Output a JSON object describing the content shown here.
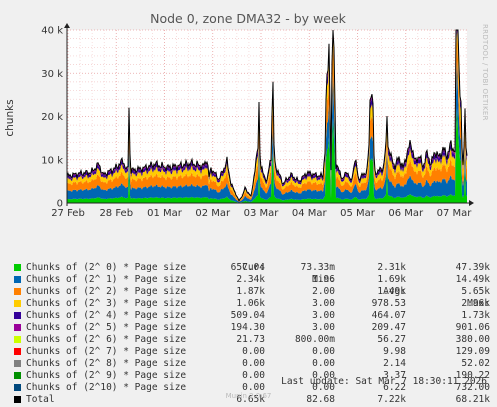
{
  "chart_data": {
    "type": "area",
    "title": "Node 0, zone DMA32 - by week",
    "ylabel": "chunks",
    "ylim": [
      0,
      40000
    ],
    "yticks": [
      0,
      10000,
      20000,
      30000,
      40000
    ],
    "ytick_labels": [
      "0",
      "10 k",
      "20 k",
      "30 k",
      "40 k"
    ],
    "x_tick_labels": [
      "27 Feb",
      "28 Feb",
      "01 Mar",
      "02 Mar",
      "03 Mar",
      "04 Mar",
      "05 Mar",
      "06 Mar",
      "07 Mar"
    ],
    "grid": true,
    "legend_columns": [
      "Cur:",
      "Min:",
      "Avg:",
      "Max:"
    ],
    "series": [
      {
        "name": "Chunks of (2^ 0) * Page size",
        "color": "#00cc00",
        "cur": "657.04",
        "min": "73.33m",
        "avg": "2.31k",
        "max": "47.39k",
        "level": 0.14
      },
      {
        "name": "Chunks of (2^ 1) * Page size",
        "color": "#0066b3",
        "cur": "2.34k",
        "min": "1.96",
        "avg": "1.69k",
        "max": "14.49k",
        "level": 0.3
      },
      {
        "name": "Chunks of (2^ 2) * Page size",
        "color": "#ff8000",
        "cur": "1.87k",
        "min": "2.00",
        "avg": "1.49k",
        "max": "5.65k",
        "level": 0.26
      },
      {
        "name": "Chunks of (2^ 3) * Page size",
        "color": "#ffcc00",
        "cur": "1.06k",
        "min": "3.00",
        "avg": "978.53",
        "max": "2.96k",
        "level": 0.16
      },
      {
        "name": "Chunks of (2^ 4) * Page size",
        "color": "#330099",
        "cur": "509.04",
        "min": "3.00",
        "avg": "464.07",
        "max": "1.73k",
        "level": 0.08
      },
      {
        "name": "Chunks of (2^ 5) * Page size",
        "color": "#990099",
        "cur": "194.30",
        "min": "3.00",
        "avg": "209.47",
        "max": "901.06",
        "level": 0.035
      },
      {
        "name": "Chunks of (2^ 6) * Page size",
        "color": "#ccff00",
        "cur": "21.73",
        "min": "800.00m",
        "avg": "56.27",
        "max": "380.00",
        "level": 0.01
      },
      {
        "name": "Chunks of (2^ 7) * Page size",
        "color": "#ff0000",
        "cur": "0.00",
        "min": "0.00",
        "avg": "9.98",
        "max": "129.09",
        "level": 0.002
      },
      {
        "name": "Chunks of (2^ 8) * Page size",
        "color": "#808080",
        "cur": "0.00",
        "min": "0.00",
        "avg": "2.14",
        "max": "52.02",
        "level": 0.0005
      },
      {
        "name": "Chunks of (2^ 9) * Page size",
        "color": "#008f00",
        "cur": "0.00",
        "min": "0.00",
        "avg": "3.37",
        "max": "190.22",
        "level": 0.001
      },
      {
        "name": "Chunks of (2^10) * Page size",
        "color": "#00487d",
        "cur": "0.00",
        "min": "0.00",
        "avg": "6.22",
        "max": "732.00",
        "level": 0.003
      }
    ],
    "total": {
      "name": "Total",
      "color": "#000000",
      "cur": "6.65k",
      "min": "82.68",
      "avg": "7.22k",
      "max": "68.21k"
    },
    "total_profile": [
      [
        0,
        6200
      ],
      [
        0.03,
        6800
      ],
      [
        0.06,
        7100
      ],
      [
        0.08,
        9000
      ],
      [
        0.09,
        6500
      ],
      [
        0.12,
        8000
      ],
      [
        0.14,
        9800
      ],
      [
        0.152,
        7000
      ],
      [
        0.155,
        15500
      ],
      [
        0.16,
        7500
      ],
      [
        0.19,
        8000
      ],
      [
        0.22,
        9000
      ],
      [
        0.25,
        8200
      ],
      [
        0.28,
        8600
      ],
      [
        0.31,
        9200
      ],
      [
        0.34,
        8500
      ],
      [
        0.35,
        10300
      ],
      [
        0.36,
        8000
      ],
      [
        0.345,
        9100
      ],
      [
        0.355,
        6000
      ],
      [
        0.38,
        5500
      ],
      [
        0.4,
        9600
      ],
      [
        0.41,
        4500
      ],
      [
        0.43,
        500
      ],
      [
        0.44,
        2000
      ],
      [
        0.445,
        3500
      ],
      [
        0.46,
        1500
      ],
      [
        0.475,
        11000
      ],
      [
        0.48,
        16000
      ],
      [
        0.485,
        8000
      ],
      [
        0.5,
        5000
      ],
      [
        0.51,
        11000
      ],
      [
        0.515,
        18000
      ],
      [
        0.52,
        9000
      ],
      [
        0.54,
        4500
      ],
      [
        0.56,
        6500
      ],
      [
        0.58,
        5000
      ],
      [
        0.6,
        7000
      ],
      [
        0.62,
        6500
      ],
      [
        0.64,
        6200
      ],
      [
        0.655,
        25000
      ],
      [
        0.66,
        8000
      ],
      [
        0.665,
        32500
      ],
      [
        0.672,
        9000
      ],
      [
        0.69,
        5500
      ],
      [
        0.7,
        7500
      ],
      [
        0.71,
        4800
      ],
      [
        0.72,
        10000
      ],
      [
        0.73,
        5500
      ],
      [
        0.74,
        6500
      ],
      [
        0.75,
        7500
      ],
      [
        0.76,
        19000
      ],
      [
        0.765,
        15000
      ],
      [
        0.77,
        7000
      ],
      [
        0.79,
        8000
      ],
      [
        0.8,
        14500
      ],
      [
        0.81,
        10500
      ],
      [
        0.82,
        8500
      ],
      [
        0.83,
        10500
      ],
      [
        0.84,
        8000
      ],
      [
        0.85,
        11500
      ],
      [
        0.86,
        14000
      ],
      [
        0.87,
        9500
      ],
      [
        0.88,
        11000
      ],
      [
        0.89,
        8500
      ],
      [
        0.9,
        11500
      ],
      [
        0.91,
        9000
      ],
      [
        0.92,
        12000
      ],
      [
        0.93,
        10500
      ],
      [
        0.94,
        12500
      ],
      [
        0.95,
        11000
      ],
      [
        0.96,
        13500
      ],
      [
        0.97,
        12000
      ],
      [
        0.975,
        37000
      ],
      [
        0.98,
        22000
      ],
      [
        0.985,
        15000
      ],
      [
        0.99,
        9000
      ],
      [
        0.995,
        16500
      ],
      [
        1.0,
        10000
      ]
    ]
  },
  "side_text": "RRDTOOL / TOBI OETIKER",
  "footer": {
    "last_update": "Last update: Sat Mar  7 18:30:11 2026",
    "munin": "Munin 2.0.67"
  }
}
